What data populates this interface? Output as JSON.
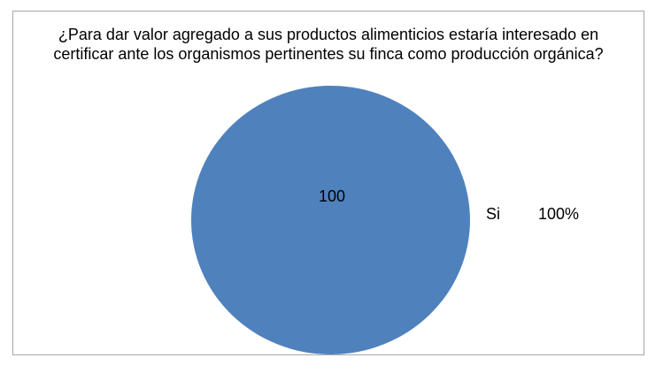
{
  "chart_data": {
    "type": "pie",
    "title": "¿Para dar valor agregado a sus productos alimenticios estaría interesado en certificar ante los organismos pertinentes su finca como producción orgánica?",
    "title_line1": "¿Para dar valor agregado a sus productos alimenticios estaría interesado en",
    "title_line2": "certificar ante los organismos pertinentes su finca como producción orgánica?",
    "categories": [
      "Si"
    ],
    "values": [
      100
    ],
    "slices": [
      {
        "label": "Si",
        "value": 100,
        "percent_label": "100%",
        "data_label": "100",
        "color": "#4F81BD"
      }
    ],
    "legend_position": "right",
    "colors": {
      "slice_fill": "#4F81BD",
      "frame_border": "#A6A6A6",
      "text": "#000000",
      "background": "#FFFFFF"
    }
  }
}
